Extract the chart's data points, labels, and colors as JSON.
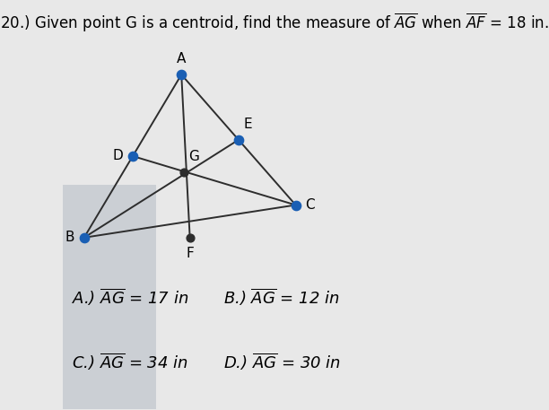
{
  "background_color": "#e8e8e8",
  "left_panel_color": "#b8bfc8",
  "triangle_vertices": {
    "A": [
      0.28,
      0.82
    ],
    "B": [
      0.05,
      0.42
    ],
    "C": [
      0.55,
      0.5
    ]
  },
  "midpoints": {
    "D": [
      0.165,
      0.62
    ],
    "E": [
      0.415,
      0.66
    ],
    "F": [
      0.3,
      0.42
    ]
  },
  "centroid": {
    "G": [
      0.285,
      0.58
    ]
  },
  "point_color_blue": "#1a5fb4",
  "point_color_dark": "#2d2d2d",
  "line_color": "#2d2d2d",
  "title_text": "20.) Given point G is a centroid, find the measure of $\\overline{AG}$ when $\\overline{AF}$ = 18 in.",
  "answer_A": "A.) $\\overline{AG}$ = 17 in",
  "answer_B": "B.) $\\overline{AG}$ = 12 in",
  "answer_C": "C.) $\\overline{AG}$ = 34 in",
  "answer_D": "D.) $\\overline{AG}$ = 30 in",
  "answer_fontsize": 13,
  "title_fontsize": 12,
  "point_label_fontsize": 11,
  "point_size_blue": 55,
  "point_size_dark": 40
}
